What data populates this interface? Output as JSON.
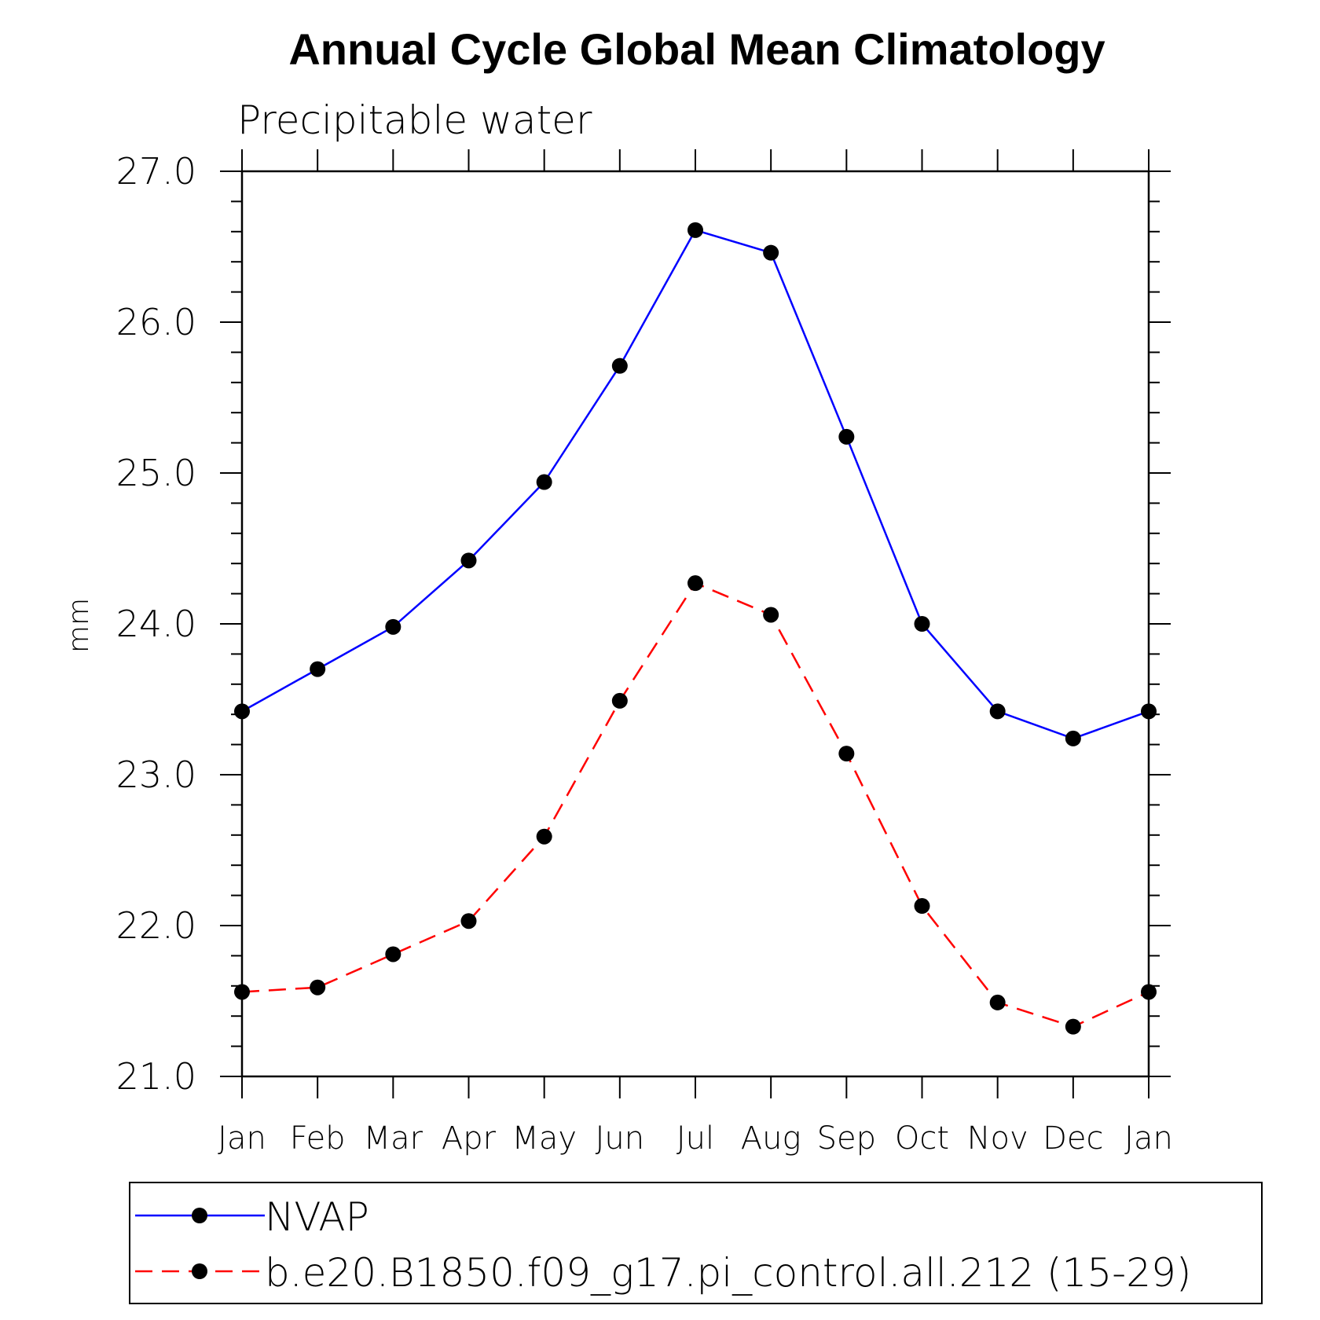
{
  "chart_data": {
    "type": "line",
    "title": "Annual Cycle Global Mean Climatology",
    "subtitle": "Precipitable water",
    "ylabel": "mm",
    "xlabel": "",
    "categories": [
      "Jan",
      "Feb",
      "Mar",
      "Apr",
      "May",
      "Jun",
      "Jul",
      "Aug",
      "Sep",
      "Oct",
      "Nov",
      "Dec",
      "Jan"
    ],
    "ylim": [
      21.0,
      27.0
    ],
    "yticks": [
      "21.0",
      "22.0",
      "23.0",
      "24.0",
      "25.0",
      "26.0",
      "27.0"
    ],
    "y_minor_step": 0.2,
    "grid": false,
    "legend_position": "bottom",
    "series": [
      {
        "name": "NVAP",
        "color": "#0000ff",
        "dash": "solid",
        "marker": "filled-circle",
        "values": [
          23.42,
          23.7,
          23.98,
          24.42,
          24.94,
          25.71,
          26.61,
          26.46,
          25.24,
          24.0,
          23.42,
          23.24,
          23.42
        ]
      },
      {
        "name": "b.e20.B1850.f09_g17.pi_control.all.212 (15-29)",
        "color": "#ff0000",
        "dash": "dashed",
        "marker": "filled-circle",
        "values": [
          21.56,
          21.59,
          21.81,
          22.03,
          22.59,
          23.49,
          24.27,
          24.06,
          23.14,
          22.13,
          21.49,
          21.33,
          21.56
        ]
      }
    ]
  }
}
